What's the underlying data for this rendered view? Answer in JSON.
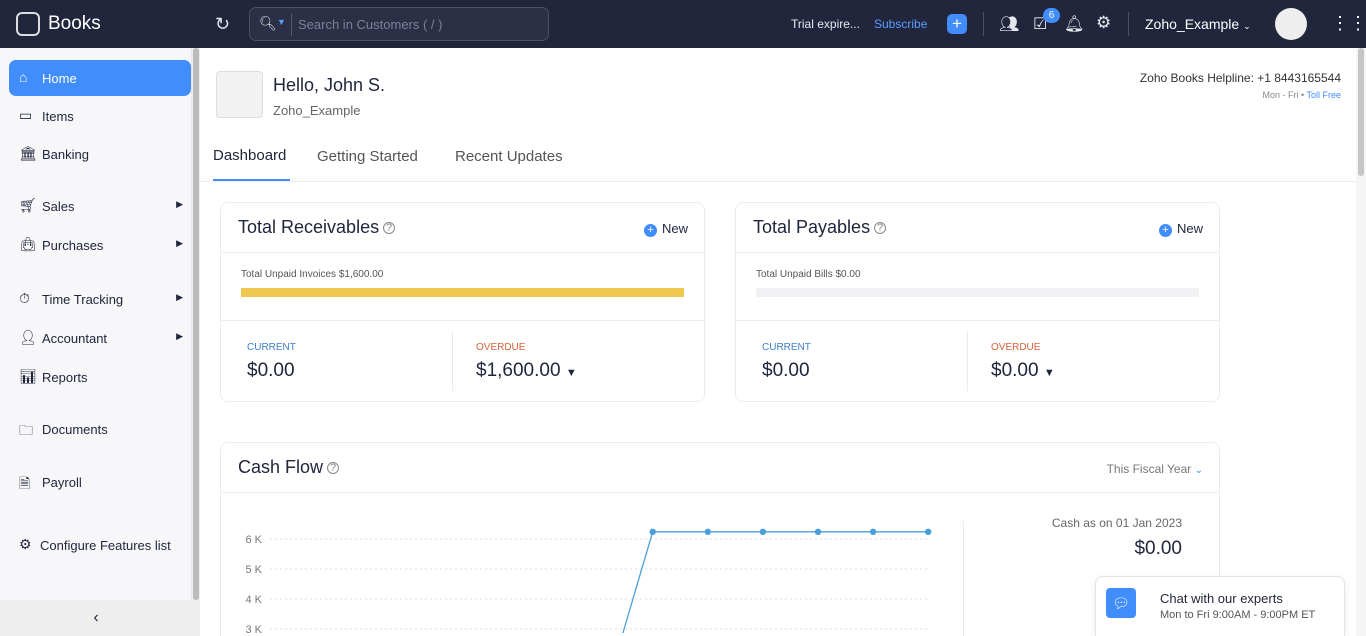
{
  "topbar": {
    "app_name": "Books",
    "search_placeholder": "Search in Customers ( / )",
    "trial_text": "Trial expire...",
    "subscribe": "Subscribe",
    "tasks_badge": "6",
    "org_name": "Zoho_Example"
  },
  "sidebar": {
    "items": [
      {
        "label": "Home",
        "icon": "home-icon",
        "active": true
      },
      {
        "label": "Items",
        "icon": "items-icon"
      },
      {
        "label": "Banking",
        "icon": "bank-icon"
      },
      {
        "label": "Sales",
        "icon": "cart-icon",
        "submenu": true
      },
      {
        "label": "Purchases",
        "icon": "bag-icon",
        "submenu": true
      },
      {
        "label": "Time Tracking",
        "icon": "timer-icon",
        "submenu": true
      },
      {
        "label": "Accountant",
        "icon": "accountant-icon",
        "submenu": true
      },
      {
        "label": "Reports",
        "icon": "reports-icon"
      },
      {
        "label": "Documents",
        "icon": "folder-icon"
      },
      {
        "label": "Payroll",
        "icon": "payroll-icon"
      },
      {
        "label": "Configure Features list",
        "icon": "configure-icon"
      }
    ]
  },
  "header": {
    "greeting": "Hello, John S.",
    "org": "Zoho_Example",
    "helpline": "Zoho Books Helpline: +1 8443165544",
    "hours": "Mon - Fri",
    "toll": "Toll Free"
  },
  "tabs": [
    {
      "label": "Dashboard",
      "active": true
    },
    {
      "label": "Getting Started"
    },
    {
      "label": "Recent Updates"
    }
  ],
  "receivables": {
    "title": "Total Receivables",
    "new": "New",
    "unpaid": "Total Unpaid Invoices $1,600.00",
    "progress_overdue": 1.0,
    "current_label": "CURRENT",
    "current": "$0.00",
    "overdue_label": "OVERDUE",
    "overdue": "$1,600.00"
  },
  "payables": {
    "title": "Total Payables",
    "new": "New",
    "unpaid": "Total Unpaid Bills $0.00",
    "progress_overdue": 0,
    "current_label": "CURRENT",
    "current": "$0.00",
    "overdue_label": "OVERDUE",
    "overdue": "$0.00"
  },
  "cashflow": {
    "title": "Cash Flow",
    "period": "This Fiscal Year",
    "cash_label": "Cash as on 01 Jan 2023",
    "cash_value": "$0.00"
  },
  "chart_data": {
    "type": "line",
    "y_ticks": [
      "6 K",
      "5 K",
      "4 K",
      "3 K"
    ],
    "values": [
      0,
      0,
      0,
      0,
      0,
      0,
      0,
      6240,
      6240,
      6240,
      6240,
      6240,
      6240
    ],
    "color": "#4a9fd8",
    "grid": true
  },
  "chat": {
    "title": "Chat with our experts",
    "hours": "Mon to Fri 9:00AM - 9:00PM ET"
  },
  "colors": {
    "accent": "#408dfb",
    "topbar": "#21263c",
    "progress": "#f0c850",
    "current": "#3d7fc9",
    "overdue": "#d9623b"
  }
}
